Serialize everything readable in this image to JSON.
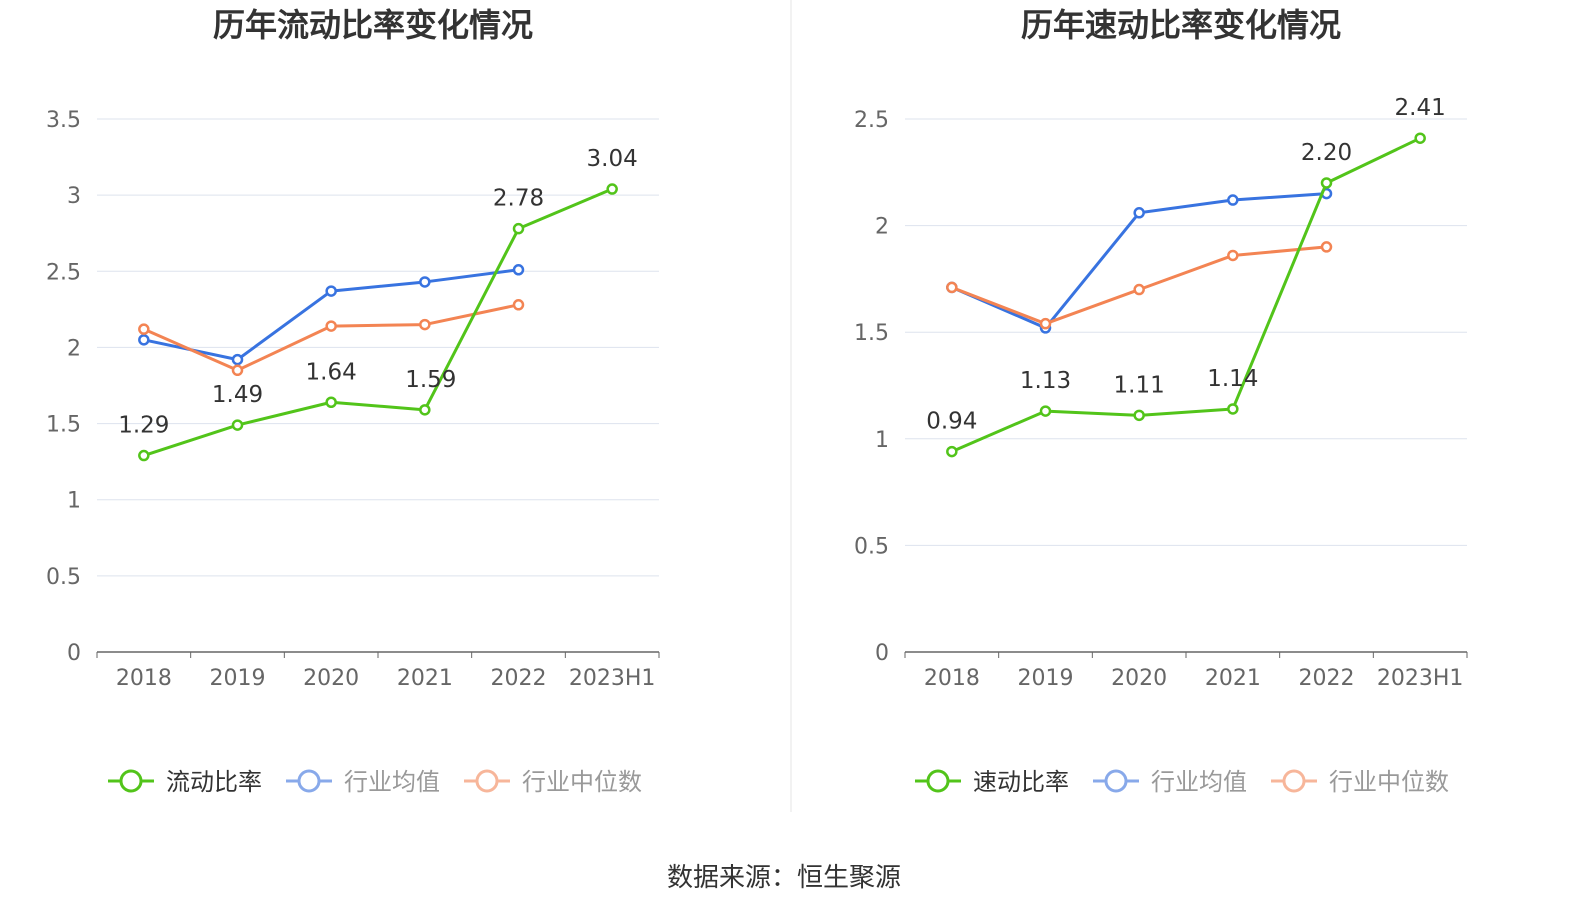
{
  "colors": {
    "primary": "#52c41a",
    "average": "#3873e0",
    "median": "#f38453",
    "average_legend": "#88a9ea",
    "median_legend": "#f7b69a",
    "grid": "#dde3ee",
    "axis": "#666666"
  },
  "source": "数据来源：恒生聚源",
  "chart_data": [
    {
      "type": "line",
      "title": "历年流动比率变化情况",
      "categories": [
        "2018",
        "2019",
        "2020",
        "2021",
        "2022",
        "2023H1"
      ],
      "y_ticks": [
        "0",
        "0.5",
        "1",
        "1.5",
        "2",
        "2.5",
        "3",
        "3.5"
      ],
      "ylim": [
        0,
        3.5
      ],
      "grid": true,
      "legend_position": "bottom",
      "series": [
        {
          "name": "流动比率",
          "values": [
            1.29,
            1.49,
            1.64,
            1.59,
            2.78,
            3.04
          ],
          "labels": [
            "1.29",
            "1.49",
            "1.64",
            "1.59",
            "2.78",
            "3.04"
          ]
        },
        {
          "name": "行业均值",
          "values": [
            2.05,
            1.92,
            2.37,
            2.43,
            2.51,
            null
          ]
        },
        {
          "name": "行业中位数",
          "values": [
            2.12,
            1.85,
            2.14,
            2.15,
            2.28,
            null
          ]
        }
      ]
    },
    {
      "type": "line",
      "title": "历年速动比率变化情况",
      "categories": [
        "2018",
        "2019",
        "2020",
        "2021",
        "2022",
        "2023H1"
      ],
      "y_ticks": [
        "0",
        "0.5",
        "1",
        "1.5",
        "2",
        "2.5"
      ],
      "ylim": [
        0,
        2.5
      ],
      "grid": true,
      "legend_position": "bottom",
      "series": [
        {
          "name": "速动比率",
          "values": [
            0.94,
            1.13,
            1.11,
            1.14,
            2.2,
            2.41
          ],
          "labels": [
            "0.94",
            "1.13",
            "1.11",
            "1.14",
            "2.20",
            "2.41"
          ]
        },
        {
          "name": "行业均值",
          "values": [
            1.71,
            1.52,
            2.06,
            2.12,
            2.15,
            null
          ]
        },
        {
          "name": "行业中位数",
          "values": [
            1.71,
            1.54,
            1.7,
            1.86,
            1.9,
            null
          ]
        }
      ]
    }
  ]
}
